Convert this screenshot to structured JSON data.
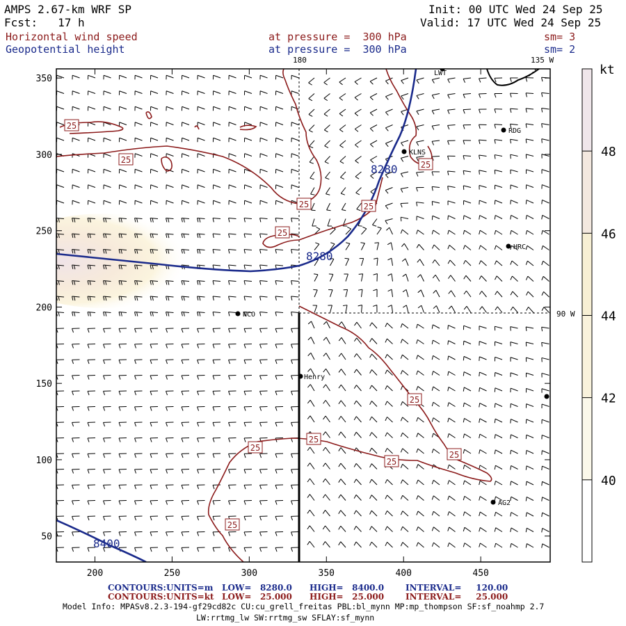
{
  "header": {
    "model": "AMPS 2.67-km WRF SP",
    "forecast": "Fcst:   17 h",
    "init": "Init: 00 UTC Wed 24 Sep 25",
    "valid": "Valid: 17 UTC Wed 24 Sep 25"
  },
  "fields": [
    {
      "name": "Horizontal wind speed",
      "level": "at pressure =  300 hPa",
      "smooth": "sm= 3",
      "color": "#8b1a1a"
    },
    {
      "name": "Geopotential height",
      "level": "at pressure =  300 hPa",
      "smooth": "sm= 2",
      "color": "#1a2a8b"
    }
  ],
  "map": {
    "x_ticks": [
      "200",
      "250",
      "300",
      "350",
      "400",
      "450"
    ],
    "y_ticks": [
      "50",
      "100",
      "150",
      "200",
      "250",
      "300",
      "350"
    ],
    "x_range": [
      175,
      495
    ],
    "y_range": [
      33,
      356
    ],
    "meridian_labels": [
      "180",
      "135 W",
      "90 W"
    ],
    "stations": [
      "LWT",
      "RDG",
      "KLNS",
      "HRC",
      "NCO",
      "Henry",
      "AG2"
    ],
    "height_labels": [
      "8280",
      "8280",
      "8400"
    ],
    "speed_labels": [
      "25",
      "25",
      "25",
      "25",
      "25",
      "25",
      "25",
      "25",
      "25",
      "25",
      "25",
      "25"
    ]
  },
  "colorbar": {
    "unit": "kt",
    "labels": [
      "48",
      "46",
      "44",
      "42",
      "40"
    ],
    "colors": [
      "#efe6ea",
      "#f3e8df",
      "#f7efd4",
      "#f9f2dc",
      "#fbf8ea",
      "#ffffff"
    ]
  },
  "footer": {
    "contours": [
      {
        "label": "CONTOURS:",
        "units": "UNITS=m",
        "low": "LOW=   8280.0",
        "high": "HIGH=   8400.0",
        "interval": "INTERVAL=     120.00",
        "color": "#1a2a8b"
      },
      {
        "label": "CONTOURS:",
        "units": "UNITS=kt",
        "low": "LOW=   25.000",
        "high": "HIGH=   25.000",
        "interval": "INTERVAL=     25.000",
        "color": "#8b1a1a"
      }
    ],
    "model_info_1": "Model Info: MPASv8.2.3-194-gf29cd82c CU:cu_grell_freitas PBL:bl_mynn MP:mp_thompson SF:sf_noahmp 2.7",
    "model_info_2": "LW:rrtmg_lw SW:rrtmg_sw SFLAY:sf_mynn"
  }
}
